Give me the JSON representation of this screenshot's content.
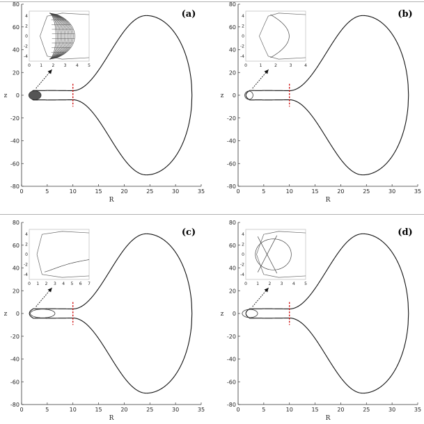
{
  "chart_data": [
    {
      "panel": "(a)",
      "type": "line",
      "xlabel": "R",
      "ylabel": "z",
      "xlim": [
        0,
        35
      ],
      "ylim": [
        -80,
        80
      ],
      "xticks": [
        0,
        5,
        10,
        15,
        20,
        25,
        30,
        35
      ],
      "yticks": [
        -80,
        -60,
        -40,
        -20,
        0,
        20,
        40,
        60,
        80
      ],
      "zero_velocity_curve": {
        "R_min": 1.5,
        "R_max": 33.2,
        "z_peak": 70,
        "R_at_peak": 24.3,
        "neck_R": 10,
        "neck_half_width": 4
      },
      "marker": {
        "R": 10,
        "z_range": [
          -10,
          10
        ],
        "color": "#cc0000",
        "style": "dashed"
      },
      "inset": {
        "xlim": [
          0,
          5
        ],
        "ylim": [
          -5,
          5
        ],
        "xticks": [
          0,
          1,
          2,
          3,
          4,
          5
        ],
        "yticks": [
          -4,
          -2,
          0,
          2,
          4
        ],
        "orbit": "chaotic-filled",
        "orbit_R_range": [
          1.4,
          3.8
        ],
        "orbit_z_max": 4.6
      }
    },
    {
      "panel": "(b)",
      "type": "line",
      "xlabel": "R",
      "ylabel": "z",
      "xlim": [
        0,
        35
      ],
      "ylim": [
        -80,
        80
      ],
      "xticks": [
        0,
        5,
        10,
        15,
        20,
        25,
        30,
        35
      ],
      "yticks": [
        -80,
        -60,
        -40,
        -20,
        0,
        20,
        40,
        60,
        80
      ],
      "zero_velocity_curve": {
        "R_min": 1.5,
        "R_max": 33.2,
        "z_peak": 70,
        "R_at_peak": 24.3,
        "neck_R": 10,
        "neck_half_width": 4
      },
      "marker": {
        "R": 10,
        "z_range": [
          -10,
          10
        ],
        "color": "#cc0000",
        "style": "dashed"
      },
      "inset": {
        "xlim": [
          0,
          4
        ],
        "ylim": [
          -5,
          5
        ],
        "xticks": [
          0,
          1,
          2,
          3,
          4
        ],
        "yticks": [
          -4,
          -2,
          0,
          2,
          4
        ],
        "orbit": "periodic-lens",
        "orbit_R_range": [
          1.3,
          2.9
        ],
        "orbit_z_max": 4.3
      }
    },
    {
      "panel": "(c)",
      "type": "line",
      "xlabel": "R",
      "ylabel": "z",
      "xlim": [
        0,
        35
      ],
      "ylim": [
        -80,
        80
      ],
      "xticks": [
        0,
        5,
        10,
        15,
        20,
        25,
        30,
        35
      ],
      "yticks": [
        -80,
        -60,
        -40,
        -20,
        0,
        20,
        40,
        60,
        80
      ],
      "zero_velocity_curve": {
        "R_min": 1.5,
        "R_max": 33.2,
        "z_peak": 70,
        "R_at_peak": 24.3,
        "neck_R": 10,
        "neck_half_width": 4
      },
      "marker": {
        "R": 10,
        "z_range": [
          -10,
          10
        ],
        "color": "#cc0000",
        "style": "dashed"
      },
      "inset": {
        "xlim": [
          0,
          7
        ],
        "ylim": [
          -5,
          5
        ],
        "xticks": [
          0,
          1,
          2,
          3,
          4,
          5,
          6,
          7
        ],
        "yticks": [
          -4,
          -2,
          0,
          2,
          4
        ],
        "orbit": "escaping-arc",
        "orbit_R_range": [
          1.2,
          7
        ],
        "orbit_z_max": 4.5
      }
    },
    {
      "panel": "(d)",
      "type": "line",
      "xlabel": "R",
      "ylabel": "z",
      "xlim": [
        0,
        35
      ],
      "ylim": [
        -80,
        80
      ],
      "xticks": [
        0,
        5,
        10,
        15,
        20,
        25,
        30,
        35
      ],
      "yticks": [
        -80,
        -60,
        -40,
        -20,
        0,
        20,
        40,
        60,
        80
      ],
      "zero_velocity_curve": {
        "R_min": 1.5,
        "R_max": 33.2,
        "z_peak": 70,
        "R_at_peak": 24.3,
        "neck_R": 10,
        "neck_half_width": 4
      },
      "marker": {
        "R": 10,
        "z_range": [
          -10,
          10
        ],
        "color": "#cc0000",
        "style": "dashed"
      },
      "inset": {
        "xlim": [
          0,
          5
        ],
        "ylim": [
          -5,
          5
        ],
        "xticks": [
          0,
          1,
          2,
          3,
          4,
          5
        ],
        "yticks": [
          -4,
          -2,
          0,
          2,
          4
        ],
        "orbit": "periodic-loop",
        "orbit_R_range": [
          0.8,
          3.8
        ],
        "orbit_z_max": 4.2
      }
    }
  ]
}
